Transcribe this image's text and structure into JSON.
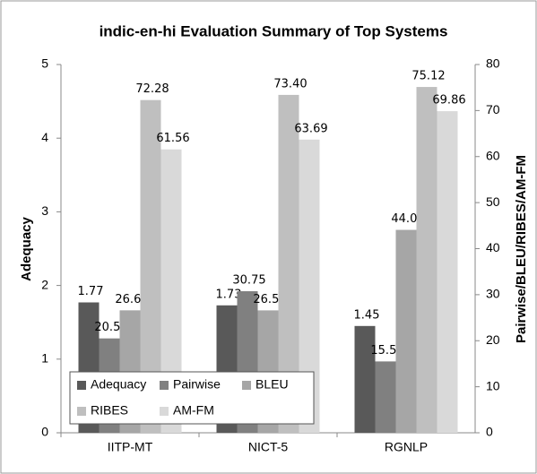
{
  "chart_data": {
    "type": "bar",
    "title": "indic-en-hi Evaluation Summary of Top Systems",
    "ylabel": "Adequacy",
    "y2label": "Pairwise/BLEU/RIBES/AM-FM",
    "categories": [
      "IITP-MT",
      "NICT-5",
      "RGNLP"
    ],
    "ylim": [
      0,
      5
    ],
    "yticks": [
      0,
      1,
      2,
      3,
      4,
      5
    ],
    "y2lim": [
      0,
      80
    ],
    "y2ticks": [
      0,
      10,
      20,
      30,
      40,
      50,
      60,
      70,
      80
    ],
    "grid": false,
    "legend": "lower left",
    "series": [
      {
        "name": "Adequacy",
        "color": "#595959",
        "values": [
          1.77,
          1.73,
          1.45
        ],
        "value_labels": [
          "1.77",
          "1.73",
          "1.45"
        ]
      },
      {
        "name": "Pairwise",
        "color": "#808080",
        "axis": "y2",
        "values": [
          20.5,
          30.75,
          15.5
        ],
        "value_labels": [
          "20.50",
          "30.75",
          "15.50"
        ]
      },
      {
        "name": "BLEU",
        "color": "#a6a6a6",
        "axis": "y2",
        "values": [
          26.6,
          26.59,
          44.08
        ],
        "value_labels": [
          "26.60",
          "26.59",
          "44.08"
        ]
      },
      {
        "name": "RIBES",
        "color": "#bfbfbf",
        "axis": "y2",
        "values": [
          72.28,
          73.4,
          75.12
        ],
        "value_labels": [
          "72.28",
          "73.40",
          "75.12"
        ]
      },
      {
        "name": "AM-FM",
        "color": "#d9d9d9",
        "axis": "y2",
        "values": [
          61.56,
          63.69,
          69.86
        ],
        "value_labels": [
          "61.56",
          "63.69",
          "69.86"
        ]
      }
    ]
  }
}
